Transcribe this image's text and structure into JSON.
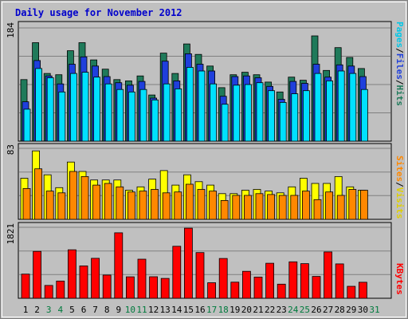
{
  "title": "Daily usage for November 2012",
  "colors": {
    "hits": "#1f7a5a",
    "files": "#1f3fdc",
    "pages": "#00e0ff",
    "visits": "#ffff00",
    "sites": "#ff8800",
    "kbytes": "#ff0000",
    "grid": "#808080",
    "title": "#0000cc",
    "weekend_label": "#007a3d",
    "weekday_label": "#000000"
  },
  "chart_data": [
    {
      "type": "bar",
      "panel": "top",
      "ymax": 184,
      "ymax_label": "184",
      "right_legend": [
        "Pages",
        "Files",
        "Hits"
      ],
      "series": [
        {
          "name": "Hits",
          "values": [
            100,
            160,
            110,
            108,
            147,
            160,
            132,
            117,
            100,
            98,
            106,
            75,
            143,
            110,
            158,
            141,
            122,
            87,
            108,
            112,
            108,
            96,
            80,
            104,
            99,
            171,
            115,
            152,
            136,
            118,
            0
          ]
        },
        {
          "name": "Files",
          "values": [
            64,
            131,
            106,
            93,
            125,
            137,
            122,
            105,
            95,
            91,
            97,
            70,
            130,
            98,
            142,
            125,
            114,
            73,
            105,
            106,
            103,
            89,
            68,
            97,
            94,
            125,
            104,
            124,
            122,
            105,
            0
          ]
        },
        {
          "name": "Pages",
          "values": [
            52,
            118,
            103,
            80,
            110,
            112,
            104,
            93,
            84,
            80,
            84,
            67,
            93,
            85,
            120,
            114,
            93,
            60,
            91,
            92,
            95,
            82,
            63,
            77,
            82,
            110,
            98,
            114,
            110,
            84,
            0
          ]
        }
      ]
    },
    {
      "type": "bar",
      "panel": "middle",
      "ymax": 83,
      "ymax_label": "83",
      "right_legend": [
        "Sites",
        "Visits"
      ],
      "series": [
        {
          "name": "Visits",
          "values": [
            48,
            80,
            52,
            37,
            67,
            56,
            46,
            46,
            46,
            34,
            38,
            47,
            57,
            40,
            52,
            44,
            40,
            30,
            30,
            34,
            35,
            33,
            31,
            38,
            48,
            42,
            42,
            50,
            38,
            34,
            0
          ]
        },
        {
          "name": "Sites",
          "values": [
            36,
            59,
            33,
            31,
            56,
            50,
            40,
            42,
            38,
            32,
            33,
            35,
            31,
            32,
            41,
            35,
            33,
            22,
            28,
            28,
            30,
            29,
            28,
            28,
            33,
            23,
            32,
            28,
            35,
            34,
            0
          ]
        }
      ]
    },
    {
      "type": "bar",
      "panel": "bottom",
      "ymax": 1821,
      "ymax_label": "1821",
      "right_legend": [
        "KBytes"
      ],
      "series": [
        {
          "name": "KBytes",
          "values": [
            620,
            1203,
            330,
            441,
            1245,
            830,
            1025,
            596,
            1680,
            551,
            1002,
            553,
            510,
            1335,
            1799,
            1173,
            400,
            1022,
            414,
            691,
            545,
            899,
            362,
            936,
            888,
            560,
            1189,
            882,
            306,
            411,
            0
          ]
        }
      ]
    }
  ],
  "days": [
    "1",
    "2",
    "3",
    "4",
    "5",
    "6",
    "7",
    "8",
    "9",
    "10",
    "11",
    "12",
    "13",
    "14",
    "15",
    "16",
    "17",
    "18",
    "19",
    "20",
    "21",
    "22",
    "23",
    "24",
    "25",
    "26",
    "27",
    "28",
    "29",
    "30",
    "31"
  ],
  "weekend_days": [
    3,
    4,
    10,
    11,
    17,
    18,
    24,
    25,
    31
  ]
}
